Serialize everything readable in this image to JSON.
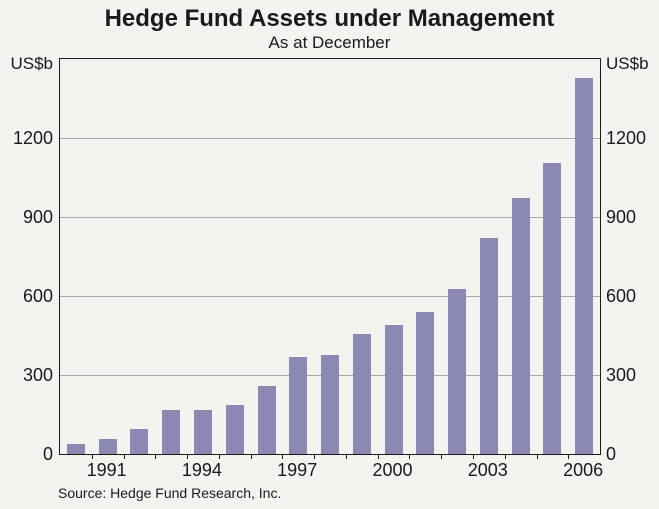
{
  "page": {
    "background_color": "#f4f3f0"
  },
  "chart_data": {
    "type": "bar",
    "title": "Hedge Fund Assets under Management",
    "subtitle": "As at December",
    "unit_label_left": "US$b",
    "unit_label_right": "US$b",
    "source": "Source: Hedge Fund Research, Inc.",
    "categories": [
      "1990",
      "1991",
      "1992",
      "1993",
      "1994",
      "1995",
      "1996",
      "1997",
      "1998",
      "1999",
      "2000",
      "2001",
      "2002",
      "2003",
      "2004",
      "2005",
      "2006"
    ],
    "values": [
      39,
      58,
      96,
      168,
      167,
      186,
      257,
      368,
      375,
      456,
      491,
      539,
      626,
      820,
      973,
      1105,
      1427
    ],
    "ylim": [
      0,
      1500
    ],
    "yticks": [
      0,
      300,
      600,
      900,
      1200
    ],
    "xtick_labels": [
      "1991",
      "1994",
      "1997",
      "2000",
      "2003",
      "2006"
    ],
    "grid": "horizontal",
    "legend": "none",
    "bar_color": "#8b89b4",
    "gridline_color": "#a9a9a9",
    "axis_color": "#1c1c1c",
    "text_color": "#1a1a1a"
  }
}
